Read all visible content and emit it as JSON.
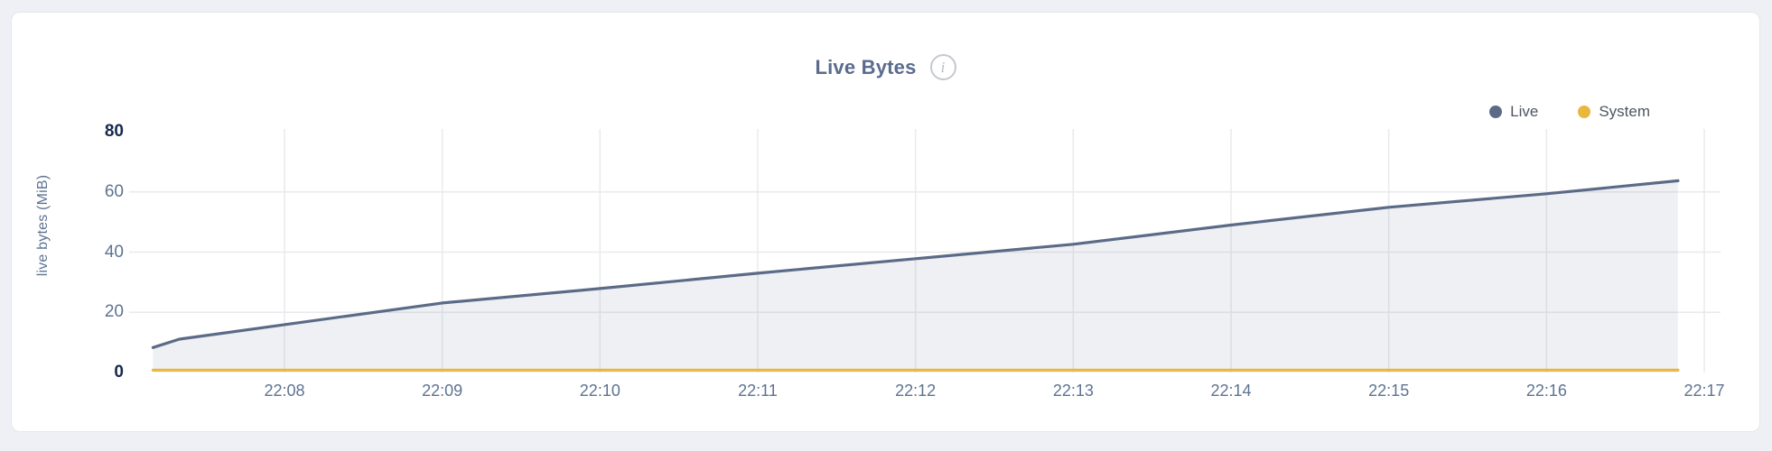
{
  "header": {
    "title": "Live Bytes",
    "info_icon": "i"
  },
  "legend": [
    {
      "label": "Live",
      "color": "#5b6b87"
    },
    {
      "label": "System",
      "color": "#e9b63e"
    }
  ],
  "colors": {
    "page_background": "#eef0f5",
    "card_background": "#ffffff",
    "grid": "#e9eaed",
    "live_line": "#5b6b87",
    "live_fill": "rgba(91,107,135,0.10)",
    "system_line": "#e9b63e",
    "axis_text": "#5e7392",
    "bold_tick_text": "#16294d",
    "title_text": "#5a6b8e"
  },
  "chart_data": {
    "type": "area",
    "title": "Live Bytes",
    "ylabel": "live bytes (MiB)",
    "xlabel": "",
    "ylim": [
      0,
      80
    ],
    "y_ticks": [
      0,
      20,
      40,
      60,
      80
    ],
    "x_tick_labels": [
      "22:08",
      "22:09",
      "22:10",
      "22:11",
      "22:12",
      "22:13",
      "22:14",
      "22:15",
      "22:16",
      "22:17"
    ],
    "grid": true,
    "legend_position": "top-right",
    "series": [
      {
        "name": "Live",
        "color": "#5b6b87",
        "fill": "rgba(91,107,135,0.10)",
        "points": [
          {
            "t": "22:07:10",
            "v": 8.3
          },
          {
            "t": "22:07:20",
            "v": 11.1
          },
          {
            "t": "22:08:00",
            "v": 15.9
          },
          {
            "t": "22:09:00",
            "v": 23.1
          },
          {
            "t": "22:10:00",
            "v": 27.9
          },
          {
            "t": "22:11:00",
            "v": 33.0
          },
          {
            "t": "22:12:00",
            "v": 37.8
          },
          {
            "t": "22:13:00",
            "v": 42.6
          },
          {
            "t": "22:14:00",
            "v": 49.0
          },
          {
            "t": "22:15:00",
            "v": 54.9
          },
          {
            "t": "22:16:00",
            "v": 59.4
          },
          {
            "t": "22:16:50",
            "v": 63.7
          }
        ]
      },
      {
        "name": "System",
        "color": "#e9b63e",
        "fill": null,
        "points": [
          {
            "t": "22:07:10",
            "v": 0.8
          },
          {
            "t": "22:10:00",
            "v": 0.8
          },
          {
            "t": "22:13:00",
            "v": 0.8
          },
          {
            "t": "22:16:50",
            "v": 0.8
          }
        ]
      }
    ]
  }
}
